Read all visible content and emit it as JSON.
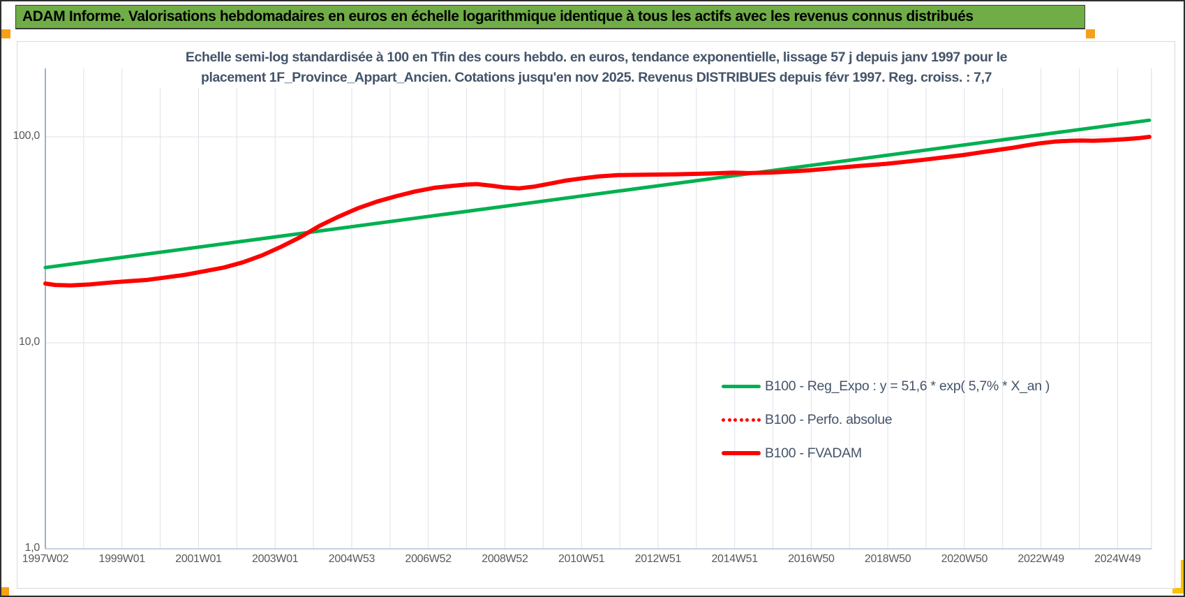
{
  "banner": {
    "text": "ADAM Informe. Valorisations hebdomadaires en euros en échelle logarithmique identique à tous les actifs avec les revenus connus distribués",
    "background_color": "#70AD47"
  },
  "chart_data": {
    "type": "line",
    "title_lines": [
      "Echelle semi-log standardisée à 100 en Tfin des cours hebdo. en euros, tendance exponentielle, lissage 57 j depuis janv 1997 pour le",
      "placement 1F_Province_Appart_Ancien. Cotations jusqu'en nov 2025. Revenus DISTRIBUES depuis févr 1997. Reg. croiss. : 7,7"
    ],
    "x_axis": {
      "type": "weekly-categories",
      "tick_labels": [
        "1997W02",
        "1999W01",
        "2001W01",
        "2003W01",
        "2004W53",
        "2006W52",
        "2008W52",
        "2010W51",
        "2012W51",
        "2014W51",
        "2016W50",
        "2018W50",
        "2020W50",
        "2022W49",
        "2024W49"
      ],
      "tick_years": [
        1997.04,
        1999.02,
        2001.0,
        2003.0,
        2004.99,
        2006.98,
        2008.98,
        2010.96,
        2012.96,
        2014.96,
        2016.94,
        2018.94,
        2020.94,
        2022.92,
        2024.92
      ],
      "grid": "yearly"
    },
    "y_axis": {
      "scale": "log10",
      "tick_labels": [
        "100,0",
        "10,0",
        "1,0"
      ],
      "tick_values": [
        100,
        10,
        1
      ],
      "range": [
        1,
        215
      ],
      "grid": "decades"
    },
    "legend_position": "inside-bottom-right",
    "series": [
      {
        "name": "B100 - Reg_Expo : y = 51,6 * exp( 5,7% *  X_an )",
        "color": "#00B050",
        "style": "solid",
        "stroke_width": 5,
        "points": [
          [
            1997.04,
            23.2
          ],
          [
            2025.87,
            120.4
          ]
        ]
      },
      {
        "name": "B100 - Perfo. absolue",
        "color": "#FF0000",
        "style": "dotted",
        "stroke_width": 5,
        "points": [],
        "note": "curve coincides with B100 - FVADAM (not separately visible)"
      },
      {
        "name": "B100 - FVADAM",
        "color": "#FF0000",
        "style": "solid",
        "stroke_width": 6,
        "points": [
          [
            1997.04,
            19.4
          ],
          [
            1997.3,
            19.1
          ],
          [
            1997.7,
            19.0
          ],
          [
            1998.2,
            19.2
          ],
          [
            1998.7,
            19.6
          ],
          [
            1999.2,
            19.9
          ],
          [
            1999.7,
            20.2
          ],
          [
            2000.2,
            20.8
          ],
          [
            2000.7,
            21.4
          ],
          [
            2001.2,
            22.3
          ],
          [
            2001.7,
            23.2
          ],
          [
            2002.2,
            24.6
          ],
          [
            2002.7,
            26.6
          ],
          [
            2003.2,
            29.3
          ],
          [
            2003.7,
            32.6
          ],
          [
            2004.2,
            37.0
          ],
          [
            2004.7,
            41.0
          ],
          [
            2005.2,
            45.0
          ],
          [
            2005.7,
            48.5
          ],
          [
            2006.2,
            51.5
          ],
          [
            2006.7,
            54.3
          ],
          [
            2007.2,
            56.6
          ],
          [
            2007.7,
            57.9
          ],
          [
            2008.0,
            58.6
          ],
          [
            2008.3,
            59.0
          ],
          [
            2008.7,
            57.9
          ],
          [
            2009.0,
            56.9
          ],
          [
            2009.4,
            56.2
          ],
          [
            2009.8,
            57.3
          ],
          [
            2010.2,
            59.2
          ],
          [
            2010.6,
            61.2
          ],
          [
            2011.0,
            62.7
          ],
          [
            2011.5,
            64.3
          ],
          [
            2012.0,
            65.2
          ],
          [
            2012.5,
            65.4
          ],
          [
            2013.0,
            65.6
          ],
          [
            2013.5,
            65.8
          ],
          [
            2014.0,
            66.1
          ],
          [
            2014.5,
            66.5
          ],
          [
            2015.0,
            67.0
          ],
          [
            2015.4,
            66.7
          ],
          [
            2016.0,
            67.1
          ],
          [
            2016.5,
            67.9
          ],
          [
            2017.0,
            68.8
          ],
          [
            2017.5,
            70.1
          ],
          [
            2018.0,
            71.5
          ],
          [
            2018.5,
            72.7
          ],
          [
            2019.0,
            74.0
          ],
          [
            2019.5,
            75.7
          ],
          [
            2020.0,
            77.5
          ],
          [
            2020.5,
            79.5
          ],
          [
            2021.0,
            81.6
          ],
          [
            2021.5,
            84.2
          ],
          [
            2022.0,
            86.9
          ],
          [
            2022.3,
            88.5
          ],
          [
            2022.6,
            90.5
          ],
          [
            2023.0,
            93.0
          ],
          [
            2023.4,
            94.8
          ],
          [
            2023.8,
            95.7
          ],
          [
            2024.1,
            96.0
          ],
          [
            2024.4,
            95.7
          ],
          [
            2024.8,
            96.4
          ],
          [
            2025.2,
            97.3
          ],
          [
            2025.6,
            98.6
          ],
          [
            2025.87,
            100.0
          ]
        ]
      }
    ]
  }
}
